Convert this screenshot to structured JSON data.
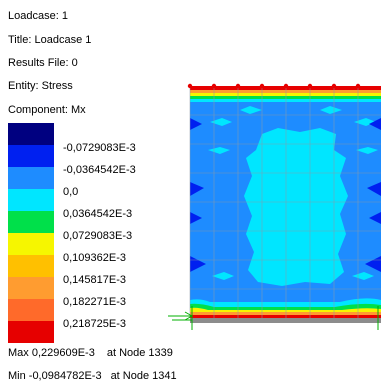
{
  "info": {
    "loadcase": "Loadcase: 1",
    "title": "Title: Loadcase 1",
    "results_file": "Results File: 0",
    "entity": "Entity: Stress",
    "component": "Component: Mx"
  },
  "legend": [
    {
      "label": "",
      "color": "#000080"
    },
    {
      "label": "-0,0729083E-3",
      "color": "#0020f0"
    },
    {
      "label": "-0,0364542E-3",
      "color": "#1e8cff"
    },
    {
      "label": "0,0",
      "color": "#00e6ff"
    },
    {
      "label": "0,0364542E-3",
      "color": "#00e04a"
    },
    {
      "label": "0,0729083E-3",
      "color": "#f6f600"
    },
    {
      "label": "0,109362E-3",
      "color": "#ffc000"
    },
    {
      "label": "0,145817E-3",
      "color": "#ff9c30"
    },
    {
      "label": "0,182271E-3",
      "color": "#ff6a2a"
    },
    {
      "label": "0,218725E-3",
      "color": "#e60000"
    }
  ],
  "max": {
    "value": "Max 0,229609E-3",
    "node": "at Node 1339"
  },
  "min": {
    "value": "Min -0,0984782E-3",
    "node": "at Node 1341"
  }
}
